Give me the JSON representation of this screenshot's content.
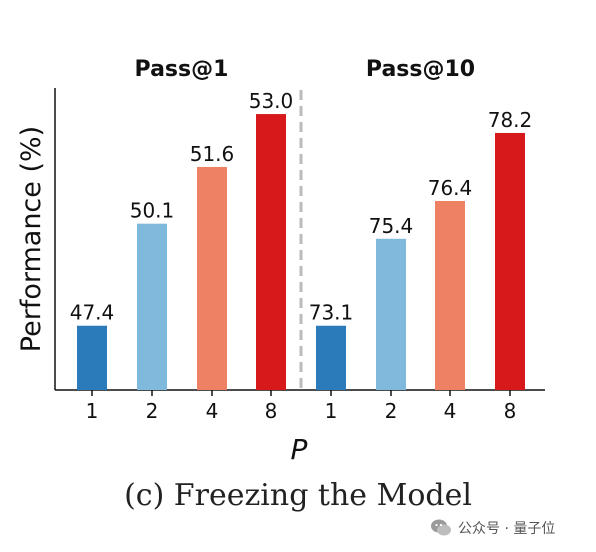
{
  "chart_data": {
    "type": "bar",
    "ylabel": "Performance (%)",
    "xlabel": "P",
    "groups": [
      {
        "title": "Pass@1",
        "categories": [
          "1",
          "2",
          "4",
          "8"
        ],
        "values": [
          47.4,
          50.1,
          51.6,
          53.0
        ],
        "value_labels": [
          "47.4",
          "50.1",
          "51.6",
          "53.0"
        ]
      },
      {
        "title": "Pass@10",
        "categories": [
          "1",
          "2",
          "4",
          "8"
        ],
        "values": [
          73.1,
          75.4,
          76.4,
          78.2
        ],
        "value_labels": [
          "73.1",
          "75.4",
          "76.4",
          "78.2"
        ]
      }
    ],
    "bar_colors": [
      "#2b7bba",
      "#7fbadd",
      "#ee8163",
      "#d7191c"
    ],
    "separator": "dashed",
    "grid": false,
    "legend": "none"
  },
  "caption": "(c) Freezing the Model",
  "watermark": {
    "text": "公众号 · 量子位",
    "icon": "wechat-icon"
  }
}
